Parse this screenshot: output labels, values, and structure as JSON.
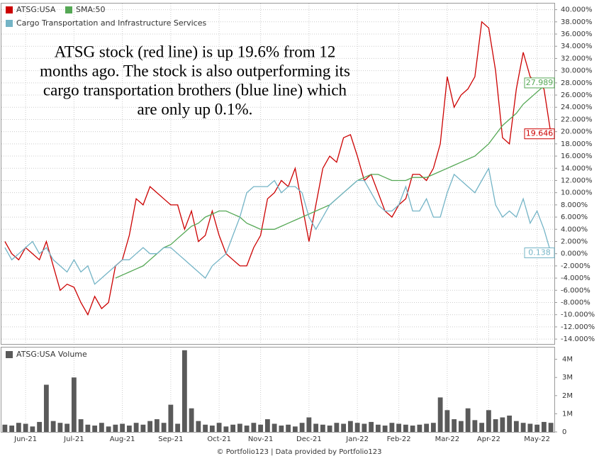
{
  "chart_data": [
    {
      "type": "line",
      "legend": "upper left",
      "grid": true,
      "annotation": [
        "ATSG stock (red line) is up 19.6% from 12",
        "months ago. The stock is also outperforming its",
        "cargo transportation brothers (blue line) which",
        "are only up 0.1%."
      ],
      "ylim": [
        -14.8,
        41.0
      ],
      "yticks": [
        {
          "value": -14,
          "label": "-14.000%"
        },
        {
          "value": -12,
          "label": "-12.000%"
        },
        {
          "value": -10,
          "label": "-10.000%"
        },
        {
          "value": -8,
          "label": "-8.000%"
        },
        {
          "value": -6,
          "label": "-6.000%"
        },
        {
          "value": -4,
          "label": "-4.000%"
        },
        {
          "value": -2,
          "label": "-2.000%"
        },
        {
          "value": 0,
          "label": "0.000%"
        },
        {
          "value": 2,
          "label": "2.000%"
        },
        {
          "value": 4,
          "label": "4.000%"
        },
        {
          "value": 6,
          "label": "6.000%"
        },
        {
          "value": 8,
          "label": "8.000%"
        },
        {
          "value": 10,
          "label": "10.000%"
        },
        {
          "value": 12,
          "label": "12.000%"
        },
        {
          "value": 14,
          "label": "14.000%"
        },
        {
          "value": 16,
          "label": "16.000%"
        },
        {
          "value": 18,
          "label": "18.000%"
        },
        {
          "value": 20,
          "label": "20.000%"
        },
        {
          "value": 22,
          "label": "22.000%"
        },
        {
          "value": 24,
          "label": "24.000%"
        },
        {
          "value": 26,
          "label": "26.000%"
        },
        {
          "value": 28,
          "label": "28.000%"
        },
        {
          "value": 30,
          "label": "30.000%"
        },
        {
          "value": 32,
          "label": "32.000%"
        },
        {
          "value": 34,
          "label": "34.000%"
        },
        {
          "value": 36,
          "label": "36.000%"
        },
        {
          "value": 38,
          "label": "38.000%"
        },
        {
          "value": 40,
          "label": "40.000%"
        }
      ],
      "series": [
        {
          "name": "ATSG:USA",
          "color": "#cc0000",
          "values": [
            2,
            0,
            -1,
            1,
            0,
            -1,
            2,
            -2,
            -6,
            -5,
            -5.5,
            -8,
            -10,
            -7,
            -9,
            -8,
            -2,
            -1,
            3,
            9,
            8,
            11,
            10,
            9,
            8,
            8,
            4,
            7,
            2,
            3,
            7,
            3,
            0,
            -1,
            -2,
            -2,
            1,
            3,
            9,
            10,
            12,
            11,
            14,
            8,
            2,
            8,
            14,
            16,
            15,
            19,
            19.5,
            16,
            12,
            13,
            10,
            7,
            6,
            8,
            9,
            13,
            13,
            12,
            14,
            18,
            29,
            24,
            26,
            27,
            29,
            38,
            37,
            30,
            19,
            18,
            27,
            33,
            29,
            28,
            27,
            19.646
          ]
        },
        {
          "name": "SMA:50",
          "color": "#55a855",
          "values": [
            null,
            null,
            null,
            null,
            null,
            null,
            null,
            null,
            null,
            null,
            null,
            null,
            null,
            null,
            null,
            null,
            -4,
            -3.5,
            -3,
            -2.5,
            -2,
            -1,
            0,
            1,
            1.5,
            2.5,
            3.5,
            4.5,
            5,
            6,
            6.5,
            7,
            7,
            6.5,
            6,
            5,
            4.5,
            4,
            4,
            4,
            4.5,
            5,
            5.5,
            6,
            6.5,
            7,
            7.5,
            8,
            9,
            10,
            11,
            12,
            12.5,
            13,
            13,
            12.5,
            12,
            12,
            12,
            12.5,
            12.5,
            12.5,
            13,
            13.5,
            14,
            14.5,
            15,
            15.5,
            16,
            17,
            18,
            19.5,
            21,
            22,
            23,
            24.5,
            25.5,
            26.5,
            27.5,
            27.989
          ]
        },
        {
          "name": "Cargo Transportation and Infrastructure Services",
          "color": "#74b4c6",
          "values": [
            1,
            -1,
            0,
            1,
            2,
            0,
            1,
            -1,
            -2,
            -3,
            -1,
            -3,
            -2,
            -5,
            -4,
            -3,
            -2,
            -1,
            -1,
            0,
            1,
            0,
            0,
            1,
            1,
            0,
            -1,
            -2,
            -3,
            -4,
            -2,
            -1,
            0,
            3,
            6,
            10,
            11,
            11,
            11,
            12,
            10,
            11,
            11,
            10,
            6,
            4,
            6,
            8,
            9,
            10,
            11,
            12,
            12,
            10,
            8,
            7,
            7,
            8,
            11,
            7,
            7,
            9,
            6,
            6,
            10,
            13,
            12,
            11,
            10,
            12,
            14,
            8,
            6,
            7,
            6,
            9,
            5,
            7,
            4,
            0.138
          ]
        }
      ]
    },
    {
      "type": "bar",
      "categories": [
        null,
        null,
        null,
        "Jun-21",
        null,
        null,
        null,
        null,
        null,
        null,
        "Jul-21",
        null,
        null,
        null,
        null,
        null,
        null,
        "Aug-21",
        null,
        null,
        null,
        null,
        null,
        null,
        "Sep-21",
        null,
        null,
        null,
        null,
        null,
        null,
        "Oct-21",
        null,
        null,
        null,
        null,
        null,
        "Nov-21",
        null,
        null,
        null,
        null,
        null,
        null,
        "Dec-21",
        null,
        null,
        null,
        null,
        null,
        null,
        "Jan-22",
        null,
        null,
        null,
        null,
        null,
        "Feb-22",
        null,
        null,
        null,
        null,
        null,
        null,
        "Mar-22",
        null,
        null,
        null,
        null,
        null,
        "Apr-22",
        null,
        null,
        null,
        null,
        null,
        null,
        "May-22",
        null,
        null
      ],
      "ylim": [
        0,
        4650000
      ],
      "yticks": [
        {
          "value": 0,
          "label": "0"
        },
        {
          "value": 1000000,
          "label": "1M"
        },
        {
          "value": 2000000,
          "label": "2M"
        },
        {
          "value": 3000000,
          "label": "3M"
        },
        {
          "value": 4000000,
          "label": "4M"
        }
      ],
      "series": [
        {
          "name": "ATSG:USA Volume",
          "color": "#5a5a5a",
          "values": [
            400000,
            350000,
            500000,
            450000,
            300000,
            550000,
            2600000,
            600000,
            500000,
            450000,
            3000000,
            700000,
            400000,
            350000,
            500000,
            300000,
            400000,
            450000,
            350000,
            500000,
            400000,
            600000,
            700000,
            500000,
            1500000,
            450000,
            4500000,
            1300000,
            600000,
            400000,
            350000,
            500000,
            300000,
            400000,
            450000,
            350000,
            500000,
            400000,
            700000,
            450000,
            350000,
            400000,
            300000,
            500000,
            800000,
            450000,
            400000,
            350000,
            500000,
            450000,
            600000,
            500000,
            450000,
            550000,
            400000,
            350000,
            500000,
            450000,
            400000,
            350000,
            400000,
            450000,
            500000,
            1900000,
            1200000,
            700000,
            600000,
            1300000,
            650000,
            500000,
            1200000,
            700000,
            800000,
            900000,
            600000,
            500000,
            450000,
            400000,
            550000,
            500000
          ]
        }
      ]
    }
  ],
  "footer": "© Portfolio123 | Data provided by Portfolio123"
}
